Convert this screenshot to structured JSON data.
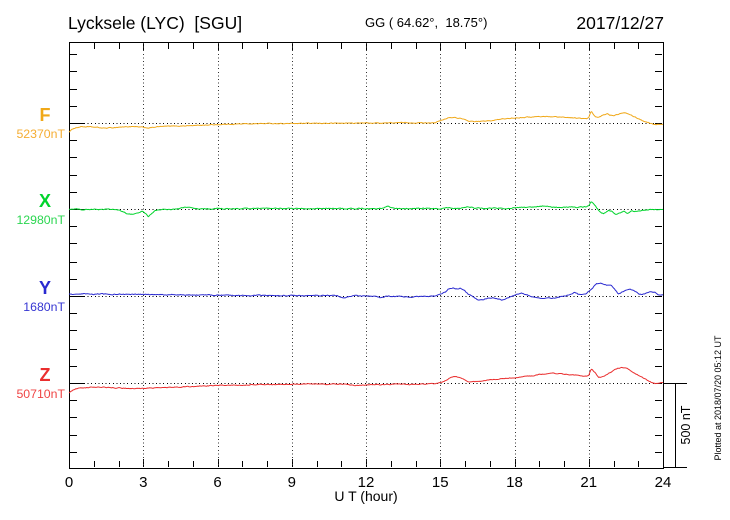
{
  "header": {
    "title": "Lycksele (LYC)  [SGU]",
    "coords": "GG ( 64.62°,  18.75°)",
    "date": "2017/12/27"
  },
  "axes": {
    "x_label": "U T (hour)",
    "x_ticks": [
      "0",
      "3",
      "6",
      "9",
      "12",
      "15",
      "18",
      "21",
      "24"
    ],
    "x_minor_step_hours": 1,
    "x_major_step_hours": 3
  },
  "scale_bar": {
    "label": "500 nT",
    "nT": 500
  },
  "footer": {
    "note": "Plotted at 2018/07/20 05:12 UT"
  },
  "chart_data": {
    "type": "line",
    "x_unit": "hour",
    "x_range": [
      0,
      24
    ],
    "nT_per_minor_division": 100,
    "series": [
      {
        "id": "F",
        "label": "F",
        "baseline_label": "52370nT",
        "baseline_nT": 52370,
        "color": "#f0a818",
        "value_color": "#f5ad33",
        "noise_nT": 4,
        "points": [
          [
            0,
            -52
          ],
          [
            0.2,
            -30
          ],
          [
            0.5,
            -21
          ],
          [
            1.0,
            -24
          ],
          [
            1.4,
            -30
          ],
          [
            1.7,
            -28
          ],
          [
            2.1,
            -23
          ],
          [
            2.5,
            -21
          ],
          [
            2.9,
            -24
          ],
          [
            3.1,
            -27
          ],
          [
            3.25,
            -29
          ],
          [
            3.5,
            -23
          ],
          [
            3.8,
            -20
          ],
          [
            4.2,
            -18
          ],
          [
            4.6,
            -17
          ],
          [
            5.0,
            -15
          ],
          [
            5.5,
            -12
          ],
          [
            6.0,
            -9
          ],
          [
            6.5,
            -7
          ],
          [
            7.0,
            -5
          ],
          [
            7.5,
            -4
          ],
          [
            8.0,
            -3
          ],
          [
            9.0,
            -3
          ],
          [
            10.0,
            -2
          ],
          [
            11.0,
            -1
          ],
          [
            12.0,
            0
          ],
          [
            12.5,
            0
          ],
          [
            13.0,
            1
          ],
          [
            13.5,
            2
          ],
          [
            14.0,
            1
          ],
          [
            14.4,
            1
          ],
          [
            14.8,
            3
          ],
          [
            15.1,
            17
          ],
          [
            15.35,
            31
          ],
          [
            15.6,
            32
          ],
          [
            15.85,
            26
          ],
          [
            16.1,
            12
          ],
          [
            16.35,
            9
          ],
          [
            16.6,
            9
          ],
          [
            17.0,
            12
          ],
          [
            17.5,
            23
          ],
          [
            18.0,
            30
          ],
          [
            18.5,
            34
          ],
          [
            19.0,
            37
          ],
          [
            19.4,
            38
          ],
          [
            19.8,
            35
          ],
          [
            20.2,
            32
          ],
          [
            20.6,
            28
          ],
          [
            20.9,
            24
          ],
          [
            21.0,
            32
          ],
          [
            21.1,
            69
          ],
          [
            21.2,
            46
          ],
          [
            21.3,
            32
          ],
          [
            21.45,
            35
          ],
          [
            21.6,
            48
          ],
          [
            21.75,
            54
          ],
          [
            21.85,
            46
          ],
          [
            22.0,
            44
          ],
          [
            22.15,
            50
          ],
          [
            22.3,
            57
          ],
          [
            22.45,
            63
          ],
          [
            22.6,
            55
          ],
          [
            22.8,
            40
          ],
          [
            23.0,
            26
          ],
          [
            23.2,
            12
          ],
          [
            23.4,
            3
          ],
          [
            23.6,
            -6
          ],
          [
            23.8,
            -9
          ],
          [
            24,
            -6
          ]
        ]
      },
      {
        "id": "X",
        "label": "X",
        "baseline_label": "12980nT",
        "baseline_nT": 12980,
        "color": "#00d42c",
        "value_color": "#2bd650",
        "noise_nT": 5,
        "points": [
          [
            0,
            0
          ],
          [
            0.5,
            -2
          ],
          [
            1.0,
            -3
          ],
          [
            1.5,
            -2
          ],
          [
            1.9,
            -3
          ],
          [
            2.1,
            -12
          ],
          [
            2.35,
            -28
          ],
          [
            2.55,
            -32
          ],
          [
            2.75,
            -23
          ],
          [
            2.95,
            -14
          ],
          [
            3.1,
            -26
          ],
          [
            3.2,
            -46
          ],
          [
            3.35,
            -26
          ],
          [
            3.5,
            -9
          ],
          [
            3.7,
            -3
          ],
          [
            4.0,
            -2
          ],
          [
            4.4,
            0
          ],
          [
            4.75,
            12
          ],
          [
            4.95,
            6
          ],
          [
            5.2,
            0
          ],
          [
            5.6,
            0
          ],
          [
            6.0,
            2
          ],
          [
            6.5,
            0
          ],
          [
            7.0,
            2
          ],
          [
            7.5,
            2
          ],
          [
            8.0,
            3
          ],
          [
            8.5,
            2
          ],
          [
            9.0,
            3
          ],
          [
            9.5,
            2
          ],
          [
            10,
            3
          ],
          [
            10.5,
            2
          ],
          [
            11,
            3
          ],
          [
            11.5,
            2
          ],
          [
            12,
            2
          ],
          [
            12.6,
            3
          ],
          [
            12.85,
            14
          ],
          [
            13.05,
            9
          ],
          [
            13.3,
            3
          ],
          [
            13.7,
            2
          ],
          [
            14.1,
            3
          ],
          [
            14.5,
            2
          ],
          [
            15.0,
            3
          ],
          [
            15.3,
            9
          ],
          [
            15.6,
            3
          ],
          [
            15.9,
            6
          ],
          [
            16.1,
            12
          ],
          [
            16.4,
            6
          ],
          [
            16.8,
            3
          ],
          [
            17.2,
            6
          ],
          [
            17.6,
            3
          ],
          [
            18.0,
            6
          ],
          [
            18.4,
            9
          ],
          [
            18.8,
            12
          ],
          [
            19.2,
            17
          ],
          [
            19.5,
            12
          ],
          [
            19.9,
            9
          ],
          [
            20.3,
            12
          ],
          [
            20.6,
            9
          ],
          [
            20.9,
            12
          ],
          [
            21.0,
            20
          ],
          [
            21.1,
            46
          ],
          [
            21.25,
            20
          ],
          [
            21.45,
            -17
          ],
          [
            21.6,
            -26
          ],
          [
            21.8,
            -9
          ],
          [
            21.95,
            -14
          ],
          [
            22.1,
            -36
          ],
          [
            22.25,
            -23
          ],
          [
            22.4,
            -12
          ],
          [
            22.55,
            -23
          ],
          [
            22.7,
            -14
          ],
          [
            22.9,
            -12
          ],
          [
            23.2,
            -6
          ],
          [
            23.5,
            -3
          ],
          [
            23.8,
            -3
          ],
          [
            24,
            -2
          ]
        ]
      },
      {
        "id": "Y",
        "label": "Y",
        "baseline_label": "1680nT",
        "baseline_nT": 1680,
        "color": "#2a2ad0",
        "value_color": "#3535d2",
        "noise_nT": 5,
        "points": [
          [
            0,
            12
          ],
          [
            0.3,
            7
          ],
          [
            0.6,
            12
          ],
          [
            0.9,
            9
          ],
          [
            1.2,
            12
          ],
          [
            1.6,
            9
          ],
          [
            2.0,
            10
          ],
          [
            2.5,
            9
          ],
          [
            3.0,
            9
          ],
          [
            3.5,
            7
          ],
          [
            4.0,
            8
          ],
          [
            4.5,
            6
          ],
          [
            5.0,
            6
          ],
          [
            5.5,
            5
          ],
          [
            6.0,
            5
          ],
          [
            6.5,
            3
          ],
          [
            7.0,
            5
          ],
          [
            7.5,
            3
          ],
          [
            8.0,
            3
          ],
          [
            8.5,
            2
          ],
          [
            9.0,
            3
          ],
          [
            9.5,
            2
          ],
          [
            10,
            2
          ],
          [
            10.5,
            3
          ],
          [
            10.9,
            0
          ],
          [
            11.15,
            -14
          ],
          [
            11.3,
            -3
          ],
          [
            11.45,
            2
          ],
          [
            11.7,
            0
          ],
          [
            12,
            0
          ],
          [
            12.3,
            -3
          ],
          [
            12.6,
            -9
          ],
          [
            12.9,
            0
          ],
          [
            13.2,
            -3
          ],
          [
            13.6,
            -3
          ],
          [
            13.85,
            -12
          ],
          [
            14.1,
            -3
          ],
          [
            14.5,
            -3
          ],
          [
            14.8,
            0
          ],
          [
            15.05,
            12
          ],
          [
            15.2,
            23
          ],
          [
            15.35,
            43
          ],
          [
            15.5,
            46
          ],
          [
            15.65,
            40
          ],
          [
            15.8,
            46
          ],
          [
            15.95,
            37
          ],
          [
            16.1,
            14
          ],
          [
            16.3,
            -3
          ],
          [
            16.5,
            -20
          ],
          [
            16.7,
            -23
          ],
          [
            16.9,
            -12
          ],
          [
            17.1,
            -9
          ],
          [
            17.3,
            -17
          ],
          [
            17.5,
            -26
          ],
          [
            17.7,
            -9
          ],
          [
            17.9,
            -3
          ],
          [
            18.1,
            9
          ],
          [
            18.3,
            17
          ],
          [
            18.5,
            6
          ],
          [
            18.8,
            -6
          ],
          [
            19.1,
            -12
          ],
          [
            19.4,
            -14
          ],
          [
            19.7,
            -9
          ],
          [
            20.0,
            0
          ],
          [
            20.2,
            6
          ],
          [
            20.45,
            23
          ],
          [
            20.6,
            9
          ],
          [
            20.75,
            6
          ],
          [
            20.9,
            14
          ],
          [
            21.1,
            40
          ],
          [
            21.3,
            72
          ],
          [
            21.45,
            75
          ],
          [
            21.6,
            66
          ],
          [
            21.75,
            60
          ],
          [
            21.9,
            63
          ],
          [
            22.05,
            40
          ],
          [
            22.2,
            12
          ],
          [
            22.4,
            26
          ],
          [
            22.6,
            40
          ],
          [
            22.75,
            35
          ],
          [
            22.9,
            23
          ],
          [
            23.1,
            9
          ],
          [
            23.3,
            14
          ],
          [
            23.5,
            29
          ],
          [
            23.65,
            23
          ],
          [
            23.8,
            9
          ],
          [
            24,
            6
          ]
        ]
      },
      {
        "id": "Z",
        "label": "Z",
        "baseline_label": "50710nT",
        "baseline_nT": 50710,
        "color": "#ea2e2e",
        "value_color": "#ef4444",
        "noise_nT": 4,
        "points": [
          [
            0,
            -58
          ],
          [
            0.15,
            -42
          ],
          [
            0.3,
            -33
          ],
          [
            0.5,
            -29
          ],
          [
            0.8,
            -26
          ],
          [
            1.1,
            -23
          ],
          [
            1.5,
            -26
          ],
          [
            2.0,
            -29
          ],
          [
            2.5,
            -32
          ],
          [
            2.9,
            -32
          ],
          [
            3.2,
            -29
          ],
          [
            3.6,
            -29
          ],
          [
            4.0,
            -26
          ],
          [
            4.5,
            -23
          ],
          [
            5.0,
            -20
          ],
          [
            5.5,
            -17
          ],
          [
            6.0,
            -14
          ],
          [
            6.5,
            -12
          ],
          [
            7.0,
            -12
          ],
          [
            7.5,
            -9
          ],
          [
            8.0,
            -9
          ],
          [
            8.5,
            -9
          ],
          [
            9.0,
            -8
          ],
          [
            9.5,
            -6
          ],
          [
            10.0,
            -6
          ],
          [
            10.4,
            -9
          ],
          [
            10.8,
            -6
          ],
          [
            11.2,
            -9
          ],
          [
            11.6,
            -14
          ],
          [
            11.9,
            -12
          ],
          [
            12.2,
            -9
          ],
          [
            12.6,
            -9
          ],
          [
            13.0,
            -8
          ],
          [
            13.4,
            -6
          ],
          [
            13.8,
            -9
          ],
          [
            14.2,
            -6
          ],
          [
            14.6,
            -5
          ],
          [
            14.9,
            -3
          ],
          [
            15.1,
            6
          ],
          [
            15.35,
            26
          ],
          [
            15.55,
            37
          ],
          [
            15.75,
            35
          ],
          [
            15.95,
            20
          ],
          [
            16.15,
            9
          ],
          [
            16.4,
            8
          ],
          [
            16.7,
            12
          ],
          [
            17.0,
            17
          ],
          [
            17.4,
            23
          ],
          [
            17.8,
            29
          ],
          [
            18.2,
            35
          ],
          [
            18.6,
            40
          ],
          [
            19.0,
            49
          ],
          [
            19.3,
            55
          ],
          [
            19.6,
            57
          ],
          [
            19.9,
            52
          ],
          [
            20.2,
            49
          ],
          [
            20.5,
            46
          ],
          [
            20.8,
            37
          ],
          [
            21.0,
            43
          ],
          [
            21.1,
            82
          ],
          [
            21.25,
            60
          ],
          [
            21.4,
            32
          ],
          [
            21.55,
            35
          ],
          [
            21.75,
            52
          ],
          [
            21.95,
            69
          ],
          [
            22.15,
            84
          ],
          [
            22.35,
            90
          ],
          [
            22.55,
            83
          ],
          [
            22.75,
            66
          ],
          [
            22.95,
            49
          ],
          [
            23.15,
            32
          ],
          [
            23.35,
            17
          ],
          [
            23.55,
            3
          ],
          [
            23.7,
            -3
          ],
          [
            23.85,
            0
          ],
          [
            24,
            0
          ]
        ]
      }
    ]
  }
}
